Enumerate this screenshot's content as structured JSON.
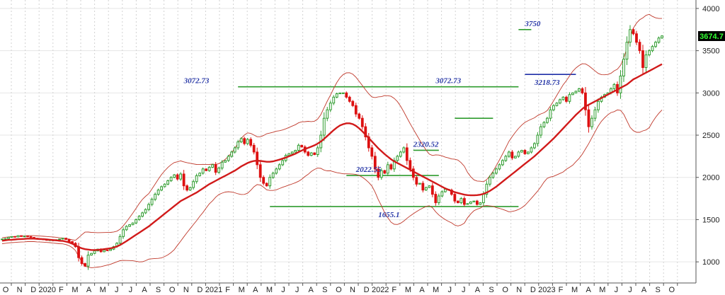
{
  "chart_data": {
    "type": "candlestick",
    "title": "",
    "xlabel": "",
    "ylabel": "",
    "ylim": [
      750,
      4100
    ],
    "yticks": [
      1000,
      1500,
      2000,
      2500,
      3000,
      3500,
      4000
    ],
    "grid": true,
    "legend": "none",
    "x_labels": [
      "O",
      "N",
      "D",
      "2020",
      "F",
      "M",
      "A",
      "M",
      "J",
      "J",
      "A",
      "S",
      "O",
      "N",
      "D",
      "2021",
      "F",
      "M",
      "A",
      "M",
      "J",
      "J",
      "A",
      "S",
      "O",
      "N",
      "D",
      "2022",
      "F",
      "M",
      "A",
      "M",
      "J",
      "J",
      "A",
      "S",
      "O",
      "N",
      "D",
      "2023",
      "F",
      "M",
      "A",
      "M",
      "J",
      "J",
      "A",
      "S",
      "O"
    ],
    "last_price": "3674.7",
    "annotations": [
      {
        "text": "3072.73",
        "label_x": 57,
        "value": 3072.73
      },
      {
        "text": "3072.73",
        "label_x": 136,
        "value": 3072.73
      },
      {
        "text": "2320.52",
        "label_x": 129,
        "value": 2320.52
      },
      {
        "text": "2022.55",
        "label_x": 111,
        "value": 2022.55
      },
      {
        "text": "1655.1",
        "label_x": 118,
        "value": 1655.1
      },
      {
        "text": "3750",
        "label_x": 164,
        "value": 3750
      },
      {
        "text": "3218.73",
        "label_x": 167,
        "value": 3218.73
      }
    ],
    "levels": [
      {
        "value": 3072.73,
        "x_from": 74,
        "x_to": 162,
        "color": "#2e9c2e"
      },
      {
        "value": 1655.1,
        "x_from": 84,
        "x_to": 162,
        "color": "#2e9c2e"
      },
      {
        "value": 2022.55,
        "x_from": 108,
        "x_to": 137,
        "color": "#2e9c2e"
      },
      {
        "value": 2320.52,
        "x_from": 129,
        "x_to": 137,
        "color": "#2e9c2e"
      },
      {
        "value": 2700,
        "x_from": 142,
        "x_to": 154,
        "color": "#2e9c2e"
      },
      {
        "value": 3750,
        "x_from": 162,
        "x_to": 166,
        "color": "#2e9c2e"
      },
      {
        "value": 3218.73,
        "x_from": 164,
        "x_to": 180,
        "color": "#1f2fa8"
      }
    ],
    "series": [
      {
        "name": "",
        "type": "candle",
        "up_color": "#2e9c2e",
        "down_color": "#dd1111",
        "close": [
          1270,
          1275,
          1290,
          1300,
          1295,
          1310,
          1300,
          1305,
          1300,
          1290,
          1280,
          1275,
          1270,
          1265,
          1255,
          1260,
          1250,
          1262,
          1270,
          1280,
          1265,
          1240,
          1220,
          1180,
          1050,
          980,
          950,
          1080,
          1100,
          1130,
          1150,
          1120,
          1140,
          1135,
          1150,
          1180,
          1220,
          1300,
          1380,
          1420,
          1440,
          1460,
          1500,
          1540,
          1580,
          1620,
          1680,
          1740,
          1800,
          1850,
          1890,
          1920,
          1960,
          2000,
          2030,
          1980,
          2040,
          1900,
          1850,
          1880,
          1950,
          2020,
          2050,
          2100,
          2080,
          2120,
          2150,
          2060,
          2110,
          2180,
          2200,
          2250,
          2300,
          2350,
          2420,
          2460,
          2400,
          2450,
          2380,
          2300,
          2150,
          2000,
          1930,
          1900,
          2000,
          2050,
          2100,
          2150,
          2200,
          2260,
          2280,
          2300,
          2320,
          2380,
          2360,
          2300,
          2260,
          2290,
          2270,
          2350,
          2500,
          2700,
          2800,
          2880,
          2950,
          2990,
          3000,
          3000,
          2950,
          2900,
          2850,
          2750,
          2700,
          2600,
          2480,
          2350,
          2250,
          2100,
          2000,
          2080,
          2050,
          2150,
          2100,
          2200,
          2250,
          2300,
          2350,
          2200,
          2100,
          2000,
          1920,
          1930,
          1850,
          1880,
          1900,
          1800,
          1700,
          1780,
          1830,
          1860,
          1850,
          1800,
          1720,
          1700,
          1750,
          1680,
          1690,
          1710,
          1720,
          1680,
          1700,
          1800,
          1920,
          2000,
          2050,
          2100,
          2150,
          2200,
          2250,
          2300,
          2230,
          2250,
          2300,
          2320,
          2280,
          2300,
          2350,
          2400,
          2500,
          2600,
          2650,
          2700,
          2800,
          2850,
          2880,
          2920,
          2950,
          2900,
          2980,
          3000,
          3020,
          3050,
          3000,
          2800,
          2600,
          2700,
          2800,
          2900,
          2950,
          2980,
          3000,
          3050,
          3100,
          3000,
          3200,
          3400,
          3600,
          3750,
          3700,
          3600,
          3500,
          3300,
          3450,
          3500,
          3550,
          3600,
          3650,
          3674.7
        ],
        "sma": [
          1250,
          1255,
          1260,
          1262,
          1265,
          1268,
          1270,
          1272,
          1275,
          1275,
          1275,
          1272,
          1270,
          1268,
          1265,
          1262,
          1258,
          1255,
          1250,
          1248,
          1240,
          1230,
          1215,
          1195,
          1175,
          1160,
          1150,
          1145,
          1140,
          1140,
          1142,
          1145,
          1150,
          1155,
          1160,
          1170,
          1182,
          1200,
          1222,
          1245,
          1270,
          1295,
          1320,
          1345,
          1370,
          1395,
          1420,
          1450,
          1480,
          1510,
          1540,
          1570,
          1600,
          1630,
          1660,
          1690,
          1720,
          1740,
          1760,
          1780,
          1800,
          1820,
          1845,
          1870,
          1895,
          1920,
          1940,
          1960,
          1980,
          2000,
          2020,
          2040,
          2060,
          2080,
          2105,
          2130,
          2150,
          2170,
          2185,
          2195,
          2198,
          2195,
          2190,
          2185,
          2185,
          2190,
          2200,
          2210,
          2222,
          2235,
          2250,
          2265,
          2280,
          2300,
          2318,
          2335,
          2350,
          2365,
          2380,
          2400,
          2425,
          2455,
          2490,
          2525,
          2560,
          2590,
          2615,
          2630,
          2640,
          2640,
          2630,
          2610,
          2580,
          2545,
          2505,
          2465,
          2425,
          2385,
          2345,
          2310,
          2275,
          2245,
          2215,
          2190,
          2170,
          2150,
          2130,
          2110,
          2090,
          2070,
          2050,
          2030,
          2010,
          1990,
          1970,
          1950,
          1930,
          1910,
          1890,
          1870,
          1855,
          1840,
          1825,
          1815,
          1805,
          1795,
          1790,
          1788,
          1788,
          1790,
          1795,
          1805,
          1820,
          1840,
          1865,
          1890,
          1920,
          1950,
          1980,
          2010,
          2040,
          2070,
          2100,
          2130,
          2160,
          2190,
          2220,
          2250,
          2285,
          2320,
          2355,
          2390,
          2425,
          2460,
          2500,
          2540,
          2580,
          2620,
          2660,
          2700,
          2740,
          2775,
          2810,
          2840,
          2860,
          2880,
          2900,
          2920,
          2940,
          2960,
          2980,
          3000,
          3020,
          3040,
          3060,
          3080,
          3100,
          3130,
          3160,
          3180,
          3200,
          3220,
          3240,
          3260,
          3280,
          3300,
          3320,
          3340
        ]
      }
    ]
  }
}
